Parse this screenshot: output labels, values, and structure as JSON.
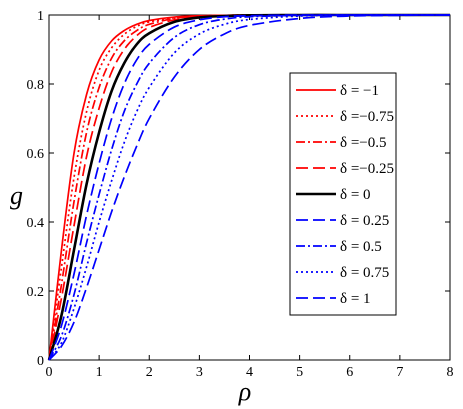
{
  "chart_data": {
    "type": "line",
    "title": "",
    "xlabel": "ρ",
    "ylabel": "g",
    "xlim": [
      0,
      8
    ],
    "ylim": [
      0,
      1
    ],
    "x_ticks": [
      "0",
      "1",
      "2",
      "3",
      "4",
      "5",
      "6",
      "7",
      "8"
    ],
    "y_ticks": [
      "0",
      "0.2",
      "0.4",
      "0.6",
      "0.8",
      "1"
    ],
    "grid": false,
    "legend_position": "right",
    "colors": {
      "negative": "#ff0000",
      "zero": "#000000",
      "positive": "#0000ff"
    },
    "x": [
      0,
      0.25,
      0.5,
      0.75,
      1,
      1.25,
      1.5,
      1.75,
      2,
      2.5,
      3,
      3.5,
      4,
      5,
      6,
      7,
      8
    ],
    "series": [
      {
        "name": "δ = −1",
        "color": "#ff0000",
        "dash": "solid",
        "values": [
          0,
          0.32,
          0.6,
          0.77,
          0.87,
          0.925,
          0.955,
          0.973,
          0.984,
          0.994,
          0.998,
          0.999,
          1.0,
          1.0,
          1.0,
          1.0,
          1.0
        ]
      },
      {
        "name": "δ =−0.75",
        "color": "#ff0000",
        "dash": "dot",
        "values": [
          0,
          0.27,
          0.53,
          0.72,
          0.84,
          0.905,
          0.944,
          0.967,
          0.98,
          0.992,
          0.997,
          0.999,
          1.0,
          1.0,
          1.0,
          1.0,
          1.0
        ]
      },
      {
        "name": "δ =−0.5",
        "color": "#ff0000",
        "dash": "dashdot",
        "values": [
          0,
          0.22,
          0.46,
          0.66,
          0.79,
          0.875,
          0.925,
          0.955,
          0.973,
          0.99,
          0.996,
          0.999,
          1.0,
          1.0,
          1.0,
          1.0,
          1.0
        ]
      },
      {
        "name": "δ =−0.25",
        "color": "#ff0000",
        "dash": "longdash",
        "values": [
          0,
          0.18,
          0.39,
          0.59,
          0.73,
          0.835,
          0.9,
          0.94,
          0.964,
          0.986,
          0.995,
          0.998,
          0.999,
          1.0,
          1.0,
          1.0,
          1.0
        ]
      },
      {
        "name": "δ = 0",
        "color": "#000000",
        "dash": "solid",
        "values": [
          0,
          0.13,
          0.32,
          0.51,
          0.66,
          0.78,
          0.86,
          0.915,
          0.947,
          0.98,
          0.993,
          0.997,
          0.999,
          1.0,
          1.0,
          1.0,
          1.0
        ]
      },
      {
        "name": "δ = 0.25",
        "color": "#0000ff",
        "dash": "longdash",
        "values": [
          0,
          0.1,
          0.25,
          0.42,
          0.57,
          0.7,
          0.8,
          0.87,
          0.915,
          0.965,
          0.986,
          0.995,
          0.998,
          1.0,
          1.0,
          1.0,
          1.0
        ]
      },
      {
        "name": "δ = 0.5",
        "color": "#0000ff",
        "dash": "dashdot",
        "values": [
          0,
          0.07,
          0.19,
          0.34,
          0.48,
          0.61,
          0.72,
          0.8,
          0.86,
          0.935,
          0.972,
          0.988,
          0.995,
          0.999,
          1.0,
          1.0,
          1.0
        ]
      },
      {
        "name": "δ = 0.75",
        "color": "#0000ff",
        "dash": "dot",
        "values": [
          0,
          0.05,
          0.15,
          0.27,
          0.4,
          0.52,
          0.63,
          0.72,
          0.79,
          0.89,
          0.945,
          0.973,
          0.987,
          0.997,
          0.999,
          1.0,
          1.0
        ]
      },
      {
        "name": "δ = 1",
        "color": "#0000ff",
        "dash": "longdash",
        "values": [
          0,
          0.04,
          0.11,
          0.21,
          0.32,
          0.43,
          0.53,
          0.62,
          0.7,
          0.82,
          0.9,
          0.945,
          0.97,
          0.99,
          0.997,
          0.999,
          1.0
        ]
      }
    ]
  }
}
